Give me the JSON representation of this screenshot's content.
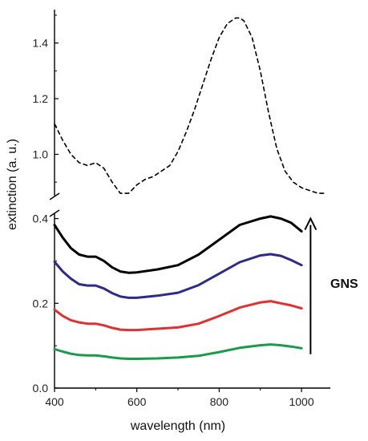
{
  "chart_data": {
    "type": "line",
    "xlabel": "wavelength (nm)",
    "ylabel": "extinction (a. u.)",
    "xlim": [
      400,
      1070
    ],
    "x_ticks": [
      400,
      600,
      800,
      1000
    ],
    "y_axis_break": true,
    "upper_panel": {
      "ylim": [
        0.84,
        1.52
      ],
      "y_ticks": [
        "1.0",
        "1.2",
        "1.4"
      ],
      "series": [
        {
          "style": "dashed",
          "color": "#000000",
          "x": [
            400,
            420,
            440,
            460,
            480,
            500,
            520,
            540,
            560,
            580,
            600,
            620,
            640,
            660,
            680,
            700,
            720,
            740,
            760,
            780,
            800,
            820,
            840,
            850,
            860,
            880,
            900,
            920,
            940,
            960,
            980,
            1000,
            1020,
            1040,
            1060
          ],
          "y": [
            1.11,
            1.05,
            1.0,
            0.97,
            0.96,
            0.97,
            0.95,
            0.9,
            0.86,
            0.86,
            0.89,
            0.91,
            0.92,
            0.94,
            0.96,
            1.01,
            1.08,
            1.16,
            1.25,
            1.34,
            1.42,
            1.47,
            1.49,
            1.49,
            1.48,
            1.42,
            1.3,
            1.15,
            1.02,
            0.94,
            0.9,
            0.88,
            0.87,
            0.86,
            0.86
          ]
        }
      ]
    },
    "lower_panel": {
      "ylim": [
        0,
        0.42
      ],
      "y_ticks": [
        "0.0",
        "0.2",
        "0.4"
      ],
      "series": [
        {
          "color": "#000000",
          "x": [
            400,
            420,
            440,
            460,
            480,
            500,
            520,
            540,
            560,
            580,
            600,
            650,
            700,
            750,
            800,
            850,
            900,
            925,
            950,
            975,
            1000
          ],
          "y": [
            0.385,
            0.355,
            0.33,
            0.315,
            0.31,
            0.31,
            0.3,
            0.285,
            0.275,
            0.272,
            0.273,
            0.28,
            0.29,
            0.315,
            0.35,
            0.385,
            0.4,
            0.405,
            0.4,
            0.39,
            0.37
          ]
        },
        {
          "color": "#2e2a8a",
          "x": [
            400,
            420,
            440,
            460,
            480,
            500,
            520,
            540,
            560,
            580,
            600,
            650,
            700,
            750,
            800,
            850,
            900,
            925,
            950,
            975,
            1000
          ],
          "y": [
            0.298,
            0.275,
            0.258,
            0.245,
            0.242,
            0.242,
            0.235,
            0.224,
            0.216,
            0.213,
            0.213,
            0.218,
            0.225,
            0.243,
            0.27,
            0.297,
            0.313,
            0.316,
            0.312,
            0.302,
            0.29
          ]
        },
        {
          "color": "#e03030",
          "x": [
            400,
            420,
            440,
            460,
            480,
            500,
            520,
            540,
            560,
            580,
            600,
            650,
            700,
            750,
            800,
            850,
            900,
            925,
            950,
            975,
            1000
          ],
          "y": [
            0.185,
            0.17,
            0.16,
            0.155,
            0.152,
            0.152,
            0.148,
            0.142,
            0.138,
            0.137,
            0.137,
            0.14,
            0.143,
            0.152,
            0.17,
            0.19,
            0.202,
            0.205,
            0.2,
            0.195,
            0.188
          ]
        },
        {
          "color": "#1a9a4a",
          "x": [
            400,
            420,
            440,
            460,
            480,
            500,
            520,
            540,
            560,
            580,
            600,
            650,
            700,
            750,
            800,
            850,
            900,
            925,
            950,
            975,
            1000
          ],
          "y": [
            0.092,
            0.086,
            0.081,
            0.078,
            0.077,
            0.077,
            0.075,
            0.072,
            0.07,
            0.069,
            0.069,
            0.07,
            0.072,
            0.076,
            0.085,
            0.095,
            0.101,
            0.103,
            0.101,
            0.098,
            0.094
          ]
        }
      ]
    },
    "annotations": [
      {
        "text": "GNS",
        "type": "arrow-up",
        "x": 1022,
        "y_from": 0.08,
        "y_to": 0.4
      }
    ]
  }
}
